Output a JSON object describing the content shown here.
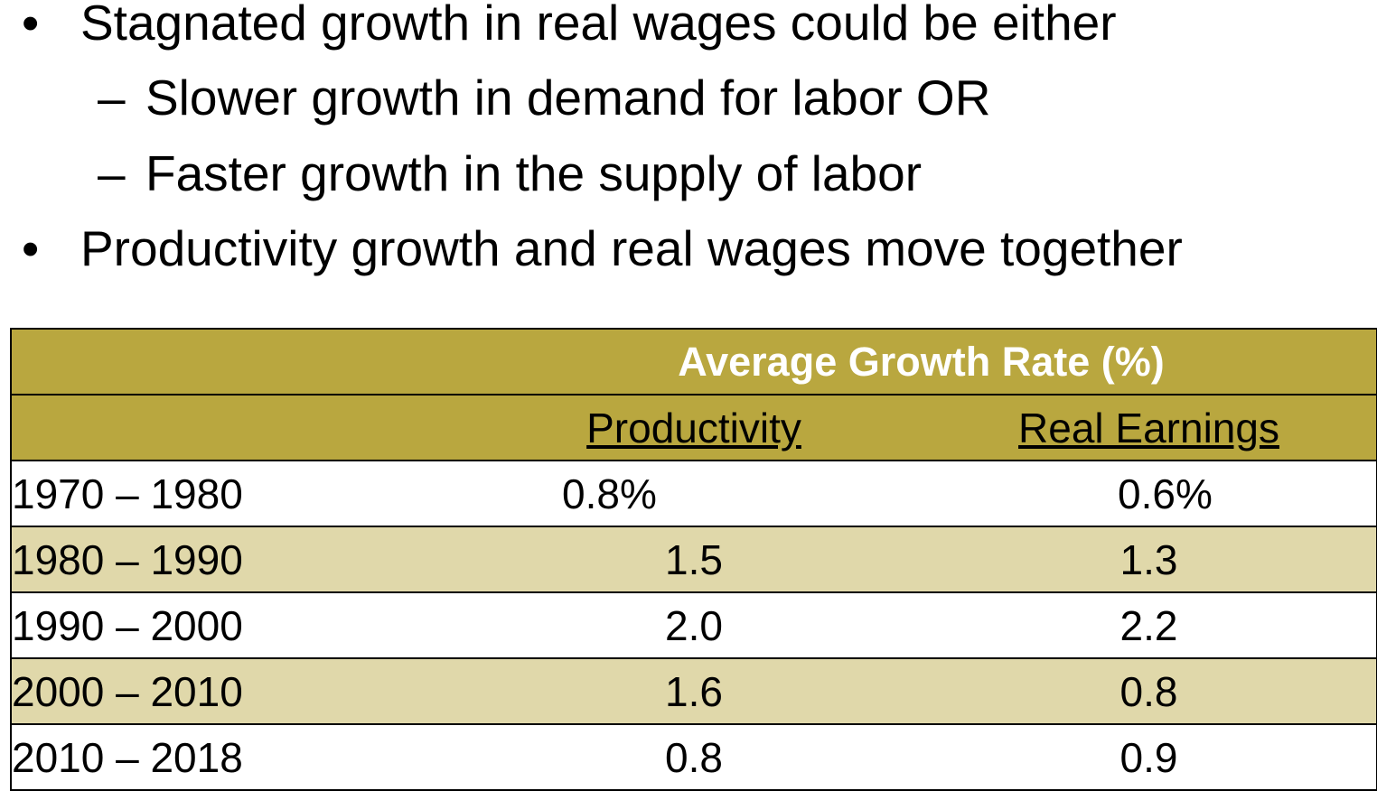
{
  "bullets": [
    {
      "marker": "•",
      "text": "Stagnated growth in real wages could be either"
    },
    {
      "marker": "–",
      "text": "Slower growth in demand for labor OR"
    },
    {
      "marker": "–",
      "text": "Faster growth in the supply of labor"
    },
    {
      "marker": "•",
      "text": "Productivity growth and real wages move together"
    }
  ],
  "table": {
    "group_header": "Average Growth Rate (%)",
    "columns": [
      "Productivity",
      "Real Earnings"
    ],
    "rows": [
      {
        "period": "1970 – 1980",
        "productivity": "0.8%",
        "real_earnings": "0.6%"
      },
      {
        "period": "1980 – 1990",
        "productivity": "1.5",
        "real_earnings": "1.3"
      },
      {
        "period": "1990 – 2000",
        "productivity": "2.0",
        "real_earnings": "2.2"
      },
      {
        "period": "2000 – 2010",
        "productivity": "1.6",
        "real_earnings": "0.8"
      },
      {
        "period": "2010 – 2018",
        "productivity": "0.8",
        "real_earnings": "0.9"
      }
    ]
  },
  "colors": {
    "header_bg": "#b9a73f",
    "band_bg": "#e0d8aa",
    "header_title_text": "#ffffff"
  }
}
